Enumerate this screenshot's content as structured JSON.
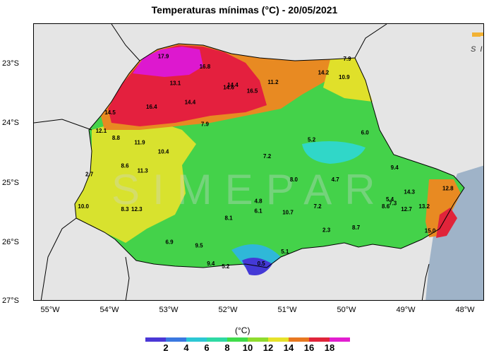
{
  "title": "Temperaturas mínimas (°C) - 20/05/2021",
  "logo_text": "SIMEPAR",
  "watermark_text": "SIMEPAR",
  "colorbar": {
    "unit": "(°C)",
    "ticks": [
      "2",
      "4",
      "6",
      "8",
      "10",
      "12",
      "14",
      "16",
      "18"
    ],
    "colors": [
      "#4a37d6",
      "#3a78e0",
      "#2cc7d4",
      "#2ed9a4",
      "#3fdc4a",
      "#8fdc2e",
      "#e6e22a",
      "#e87820",
      "#e0243a",
      "#e21ed0"
    ]
  },
  "axes": {
    "y_ticks": [
      "23°S",
      "24°S",
      "25°S",
      "26°S",
      "27°S"
    ],
    "x_ticks": [
      "55°W",
      "54°W",
      "53°W",
      "52°W",
      "51°W",
      "50°W",
      "49°W",
      "48°W"
    ]
  },
  "stations": [
    {
      "value": "17.9",
      "lon": -53.1,
      "lat": -22.9
    },
    {
      "value": "16.8",
      "lon": -52.4,
      "lat": -23.07
    },
    {
      "value": "13.1",
      "lon": -52.9,
      "lat": -23.35
    },
    {
      "value": "14.6",
      "lon": -52.0,
      "lat": -23.42
    },
    {
      "value": "14.4",
      "lon": -51.93,
      "lat": -23.38
    },
    {
      "value": "16.5",
      "lon": -51.6,
      "lat": -23.48
    },
    {
      "value": "11.2",
      "lon": -51.25,
      "lat": -23.33
    },
    {
      "value": "14.2",
      "lon": -50.4,
      "lat": -23.17
    },
    {
      "value": "10.9",
      "lon": -50.05,
      "lat": -23.25
    },
    {
      "value": "7.9",
      "lon": -50.0,
      "lat": -22.94
    },
    {
      "value": "14.5",
      "lon": -54.0,
      "lat": -23.84
    },
    {
      "value": "16.4",
      "lon": -53.3,
      "lat": -23.75
    },
    {
      "value": "14.4",
      "lon": -52.65,
      "lat": -23.67
    },
    {
      "value": "7.9",
      "lon": -52.4,
      "lat": -24.04
    },
    {
      "value": "12.1",
      "lon": -54.15,
      "lat": -24.15
    },
    {
      "value": "8.8",
      "lon": -53.9,
      "lat": -24.27
    },
    {
      "value": "11.9",
      "lon": -53.5,
      "lat": -24.35
    },
    {
      "value": "10.4",
      "lon": -53.1,
      "lat": -24.5
    },
    {
      "value": "5.2",
      "lon": -50.6,
      "lat": -24.3
    },
    {
      "value": "6.0",
      "lon": -49.7,
      "lat": -24.18
    },
    {
      "value": "7.2",
      "lon": -51.35,
      "lat": -24.58
    },
    {
      "value": "8.6",
      "lon": -53.75,
      "lat": -24.74
    },
    {
      "value": "11.3",
      "lon": -53.45,
      "lat": -24.82
    },
    {
      "value": "2.7",
      "lon": -54.35,
      "lat": -24.88
    },
    {
      "value": "9.4",
      "lon": -49.2,
      "lat": -24.77
    },
    {
      "value": "8.0",
      "lon": -50.9,
      "lat": -24.97
    },
    {
      "value": "4.7",
      "lon": -50.2,
      "lat": -24.97
    },
    {
      "value": "14.3",
      "lon": -48.95,
      "lat": -25.18
    },
    {
      "value": "12.8",
      "lon": -48.3,
      "lat": -25.12
    },
    {
      "value": "10.0",
      "lon": -54.45,
      "lat": -25.42
    },
    {
      "value": "8.3",
      "lon": -53.75,
      "lat": -25.47
    },
    {
      "value": "12.3",
      "lon": -53.55,
      "lat": -25.47
    },
    {
      "value": "4.8",
      "lon": -51.5,
      "lat": -25.33
    },
    {
      "value": "6.1",
      "lon": -51.5,
      "lat": -25.5
    },
    {
      "value": "10.7",
      "lon": -51.0,
      "lat": -25.52
    },
    {
      "value": "7.2",
      "lon": -50.5,
      "lat": -25.42
    },
    {
      "value": "5.4",
      "lon": -49.28,
      "lat": -25.3
    },
    {
      "value": "7.3",
      "lon": -49.23,
      "lat": -25.37
    },
    {
      "value": "8.6",
      "lon": -49.35,
      "lat": -25.42
    },
    {
      "value": "12.7",
      "lon": -49.0,
      "lat": -25.47
    },
    {
      "value": "13.2",
      "lon": -48.7,
      "lat": -25.42
    },
    {
      "value": "8.1",
      "lon": -52.0,
      "lat": -25.62
    },
    {
      "value": "8.7",
      "lon": -49.85,
      "lat": -25.78
    },
    {
      "value": "2.3",
      "lon": -50.35,
      "lat": -25.82
    },
    {
      "value": "15.0",
      "lon": -48.6,
      "lat": -25.83
    },
    {
      "value": "6.9",
      "lon": -53.0,
      "lat": -26.02
    },
    {
      "value": "9.5",
      "lon": -52.5,
      "lat": -26.08
    },
    {
      "value": "5.1",
      "lon": -51.05,
      "lat": -26.18
    },
    {
      "value": "9.4",
      "lon": -52.3,
      "lat": -26.38
    },
    {
      "value": "5.2",
      "lon": -52.05,
      "lat": -26.43
    },
    {
      "value": "0.5",
      "lon": -51.45,
      "lat": -26.38
    }
  ]
}
